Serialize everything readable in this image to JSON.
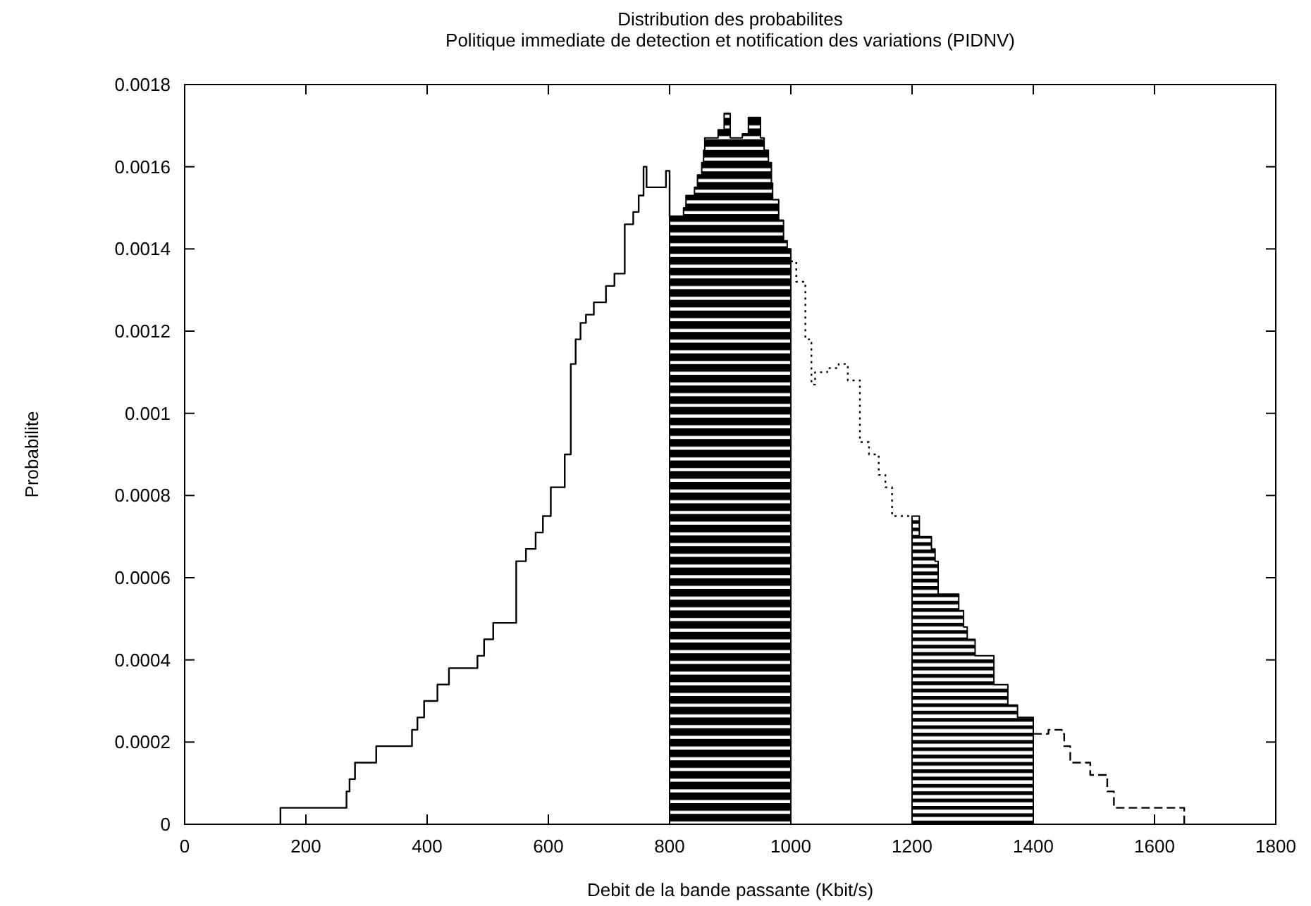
{
  "chart_data": {
    "type": "step",
    "title": "Distribution des probabilites",
    "subtitle": "Politique immediate de detection et notification des variations (PIDNV)",
    "xlabel": "Debit de la bande passante (Kbit/s)",
    "ylabel": "Probabilite",
    "xlim": [
      0,
      1800
    ],
    "xticks": [
      0,
      200,
      400,
      600,
      800,
      1000,
      1200,
      1400,
      1600,
      1800
    ],
    "ylim": [
      0,
      0.0018
    ],
    "yticks": [
      0,
      0.0002,
      0.0004,
      0.0006,
      0.0008,
      0.001,
      0.0012,
      0.0014,
      0.0016,
      0.0018
    ],
    "grid": false,
    "series": [
      {
        "line_style": "solid",
        "color": "#000000",
        "x": [
          158,
          158,
          267,
          272,
          281,
          316,
          375,
          384,
          395,
          417,
          436,
          483,
          494,
          509,
          547,
          563,
          579,
          591,
          604,
          627,
          637,
          645,
          653,
          662,
          675,
          695,
          709,
          726,
          740,
          749,
          757,
          762,
          794,
          800
        ],
        "values": [
          0,
          4e-05,
          8e-05,
          0.00011,
          0.00015,
          0.00019,
          0.00023,
          0.00026,
          0.0003,
          0.00034,
          0.00038,
          0.00041,
          0.00045,
          0.00049,
          0.00064,
          0.00067,
          0.00071,
          0.00075,
          0.00082,
          0.0009,
          0.00112,
          0.00118,
          0.00122,
          0.00124,
          0.00127,
          0.00131,
          0.00134,
          0.00146,
          0.00149,
          0.00153,
          0.0016,
          0.00155,
          0.00159,
          0.00148
        ]
      },
      {
        "type": "area",
        "line_style": "solid",
        "color": "#000000",
        "x": [
          800,
          823,
          827,
          841,
          846,
          853,
          856,
          858,
          880,
          890,
          900,
          920,
          930,
          950,
          956,
          963,
          968,
          970,
          980,
          988,
          994,
          1000
        ],
        "values": [
          0.00148,
          0.0015,
          0.00153,
          0.00155,
          0.00158,
          0.00161,
          0.00164,
          0.00167,
          0.00169,
          0.00173,
          0.00167,
          0.00168,
          0.00172,
          0.00167,
          0.00164,
          0.00161,
          0.00156,
          0.00152,
          0.00147,
          0.00142,
          0.0014,
          0.00137
        ]
      },
      {
        "line_style": "dotted",
        "color": "#000000",
        "x": [
          1000,
          1009,
          1024,
          1034,
          1040,
          1060,
          1079,
          1094,
          1114,
          1129,
          1145,
          1156,
          1167,
          1200
        ],
        "values": [
          0.00137,
          0.00132,
          0.00118,
          0.00107,
          0.0011,
          0.00111,
          0.00112,
          0.00108,
          0.00093,
          0.0009,
          0.00085,
          0.00082,
          0.00075,
          0.00075
        ]
      },
      {
        "type": "area",
        "line_style": "solid",
        "color": "#000000",
        "x": [
          1200,
          1212,
          1232,
          1238,
          1243,
          1277,
          1285,
          1291,
          1304,
          1335,
          1358,
          1374,
          1400
        ],
        "values": [
          0.00075,
          0.0007,
          0.00067,
          0.00064,
          0.00056,
          0.00052,
          0.00048,
          0.00045,
          0.00041,
          0.00034,
          0.00029,
          0.00026,
          0.00022
        ]
      },
      {
        "line_style": "dashed",
        "color": "#000000",
        "x": [
          1400,
          1425,
          1447,
          1451,
          1461,
          1494,
          1522,
          1533,
          1649,
          1649
        ],
        "values": [
          0.00022,
          0.00023,
          0.00022,
          0.00019,
          0.00015,
          0.00012,
          8e-05,
          4e-05,
          4e-05,
          0
        ]
      }
    ]
  }
}
